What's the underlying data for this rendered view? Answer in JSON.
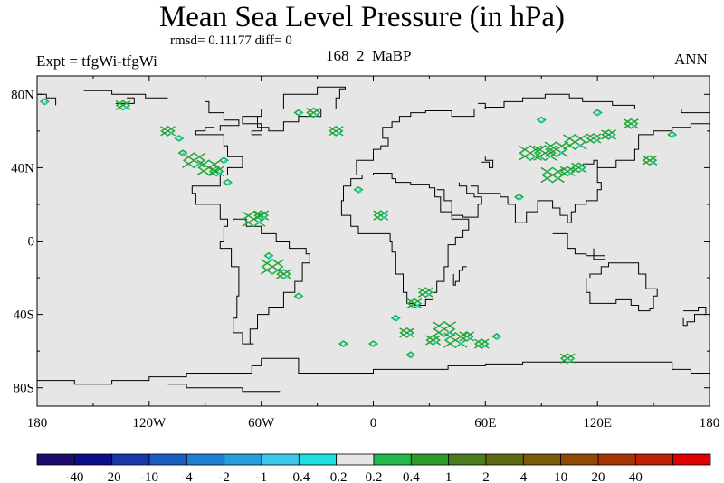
{
  "title": "Mean Sea Level Pressure (in hPa)",
  "stats": "rmsd= 0.11177 diff= 0",
  "experiment": "Expt = tfgWi-tfgWi",
  "run": "168_2_MaBP",
  "season": "ANN",
  "colors": {
    "ocean_bg": "#e6e6e6",
    "coast": "#000000",
    "pos_light": "#16b44a",
    "pos_mid": "#2f9a2a",
    "neg_light": "#1ad6d6"
  },
  "chart_data": {
    "type": "heatmap",
    "xlim": [
      -180,
      180
    ],
    "ylim": [
      -90,
      90
    ],
    "x_ticks": [
      {
        "v": -180,
        "label": "180"
      },
      {
        "v": -120,
        "label": "120W"
      },
      {
        "v": -60,
        "label": "60W"
      },
      {
        "v": 0,
        "label": "0"
      },
      {
        "v": 60,
        "label": "60E"
      },
      {
        "v": 120,
        "label": "120E"
      },
      {
        "v": 180,
        "label": "180"
      }
    ],
    "y_ticks": [
      {
        "v": 80,
        "label": "80N"
      },
      {
        "v": 40,
        "label": "40N"
      },
      {
        "v": 0,
        "label": "0"
      },
      {
        "v": -40,
        "label": "40S"
      },
      {
        "v": -80,
        "label": "80S"
      }
    ],
    "colorbar": {
      "colors": [
        "#1f0b6e",
        "#0a0e8a",
        "#1c37a8",
        "#1a5ec0",
        "#1f7fd0",
        "#26a0dc",
        "#3cc8e8",
        "#1ee0e0",
        "#e6e6e6",
        "#22b84a",
        "#2f9a2a",
        "#4a7d1d",
        "#5f6a14",
        "#7a5a0c",
        "#8f4a06",
        "#a53604",
        "#c01f02",
        "#e00000"
      ],
      "labels": [
        "-40",
        "-20",
        "-10",
        "-4",
        "-2",
        "-1",
        "-0.4",
        "-0.2",
        "0.2",
        "0.4",
        "1",
        "2",
        "4",
        "10",
        "20",
        "40"
      ]
    },
    "coastlines": [
      [
        [
          -180,
          80
        ],
        [
          -175,
          80
        ],
        [
          -175,
          78
        ],
        [
          -170,
          78
        ],
        [
          -170,
          74
        ]
      ],
      [
        [
          -155,
          82
        ],
        [
          -140,
          82
        ],
        [
          -140,
          80
        ],
        [
          -122,
          80
        ],
        [
          -122,
          78
        ],
        [
          -110,
          78
        ]
      ],
      [
        [
          -132,
          78
        ],
        [
          -128,
          78
        ],
        [
          -128,
          75
        ],
        [
          -138,
          75
        ]
      ],
      [
        [
          -90,
          76
        ],
        [
          -88,
          70
        ],
        [
          -80,
          70
        ],
        [
          -80,
          66
        ],
        [
          -72,
          66
        ],
        [
          -72,
          63
        ],
        [
          -78,
          63
        ],
        [
          -82,
          60
        ]
      ],
      [
        [
          -85,
          62
        ],
        [
          -90,
          60
        ],
        [
          -95,
          58
        ],
        [
          -80,
          52
        ],
        [
          -78,
          46
        ],
        [
          -70,
          40
        ],
        [
          -78,
          36
        ],
        [
          -82,
          30
        ],
        [
          -90,
          30
        ],
        [
          -97,
          26
        ],
        [
          -95,
          20
        ],
        [
          -88,
          20
        ],
        [
          -82,
          12
        ],
        [
          -78,
          8
        ],
        [
          -80,
          0
        ],
        [
          -82,
          -4
        ],
        [
          -76,
          -14
        ],
        [
          -72,
          -20
        ],
        [
          -72,
          -30
        ],
        [
          -73,
          -42
        ],
        [
          -75,
          -50
        ],
        [
          -70,
          -56
        ],
        [
          -64,
          -56
        ],
        [
          -66,
          -48
        ],
        [
          -62,
          -40
        ],
        [
          -56,
          -36
        ],
        [
          -48,
          -28
        ],
        [
          -42,
          -22
        ],
        [
          -38,
          -12
        ],
        [
          -34,
          -7
        ],
        [
          -36,
          -4
        ],
        [
          -45,
          0
        ],
        [
          -52,
          4
        ],
        [
          -60,
          8
        ],
        [
          -68,
          12
        ],
        [
          -75,
          11
        ]
      ],
      [
        [
          -60,
          58
        ],
        [
          -65,
          60
        ],
        [
          -60,
          64
        ],
        [
          -70,
          68
        ],
        [
          -60,
          72
        ],
        [
          -48,
          80
        ],
        [
          -30,
          84
        ],
        [
          -15,
          83
        ],
        [
          -18,
          78
        ],
        [
          -20,
          72
        ],
        [
          -28,
          68
        ],
        [
          -40,
          65
        ],
        [
          -48,
          60
        ],
        [
          -56,
          62
        ],
        [
          -62,
          68
        ]
      ],
      [
        [
          -10,
          36
        ],
        [
          -9,
          44
        ],
        [
          -4,
          44
        ],
        [
          0,
          50
        ],
        [
          4,
          52
        ],
        [
          8,
          56
        ],
        [
          5,
          62
        ],
        [
          10,
          65
        ],
        [
          14,
          68
        ],
        [
          20,
          70
        ],
        [
          28,
          71
        ],
        [
          42,
          68
        ],
        [
          48,
          68
        ],
        [
          54,
          72
        ],
        [
          60,
          73
        ],
        [
          70,
          76
        ],
        [
          80,
          78
        ],
        [
          92,
          80
        ],
        [
          105,
          78
        ],
        [
          112,
          76
        ],
        [
          128,
          74
        ],
        [
          140,
          72
        ],
        [
          152,
          72
        ],
        [
          165,
          70
        ],
        [
          175,
          70
        ],
        [
          180,
          70
        ]
      ],
      [
        [
          -10,
          36
        ],
        [
          -6,
          34
        ],
        [
          -12,
          30
        ],
        [
          -16,
          22
        ],
        [
          -17,
          14
        ],
        [
          -12,
          8
        ],
        [
          -8,
          4
        ],
        [
          0,
          4
        ],
        [
          8,
          4
        ],
        [
          9,
          0
        ],
        [
          10,
          -6
        ],
        [
          12,
          -12
        ],
        [
          12,
          -18
        ],
        [
          16,
          -28
        ],
        [
          18,
          -34
        ],
        [
          22,
          -35
        ],
        [
          28,
          -32
        ],
        [
          32,
          -28
        ],
        [
          34,
          -22
        ],
        [
          38,
          -14
        ],
        [
          40,
          -8
        ],
        [
          40,
          -2
        ],
        [
          44,
          2
        ],
        [
          48,
          6
        ],
        [
          51,
          12
        ],
        [
          44,
          12
        ],
        [
          42,
          16
        ],
        [
          36,
          24
        ],
        [
          33,
          29
        ],
        [
          30,
          31
        ],
        [
          26,
          31
        ],
        [
          20,
          32
        ],
        [
          12,
          34
        ],
        [
          10,
          37
        ],
        [
          0,
          36
        ],
        [
          -5,
          36
        ]
      ],
      [
        [
          34,
          28
        ],
        [
          38,
          22
        ],
        [
          42,
          14
        ],
        [
          48,
          13
        ],
        [
          56,
          20
        ],
        [
          58,
          24
        ],
        [
          54,
          26
        ],
        [
          50,
          30
        ],
        [
          46,
          32
        ]
      ],
      [
        [
          52,
          30
        ],
        [
          56,
          26
        ],
        [
          62,
          26
        ],
        [
          68,
          24
        ],
        [
          72,
          20
        ],
        [
          76,
          10
        ],
        [
          80,
          10
        ],
        [
          82,
          16
        ],
        [
          88,
          22
        ],
        [
          92,
          22
        ],
        [
          96,
          18
        ],
        [
          100,
          14
        ],
        [
          104,
          10
        ],
        [
          106,
          16
        ],
        [
          108,
          20
        ],
        [
          114,
          22
        ],
        [
          120,
          28
        ],
        [
          122,
          32
        ],
        [
          120,
          40
        ],
        [
          126,
          40
        ],
        [
          130,
          44
        ],
        [
          140,
          50
        ],
        [
          142,
          58
        ],
        [
          150,
          60
        ],
        [
          160,
          62
        ],
        [
          170,
          64
        ],
        [
          180,
          66
        ]
      ],
      [
        [
          50,
          -14
        ],
        [
          48,
          -16
        ],
        [
          46,
          -22
        ],
        [
          44,
          -24
        ],
        [
          43,
          -18
        ]
      ],
      [
        [
          96,
          4
        ],
        [
          104,
          -4
        ],
        [
          108,
          -7
        ],
        [
          114,
          -8
        ],
        [
          124,
          -10
        ],
        [
          118,
          -4
        ]
      ],
      [
        [
          114,
          -20
        ],
        [
          114,
          -28
        ],
        [
          116,
          -34
        ],
        [
          124,
          -34
        ],
        [
          130,
          -32
        ],
        [
          138,
          -35
        ],
        [
          142,
          -38
        ],
        [
          148,
          -37
        ],
        [
          150,
          -30
        ],
        [
          152,
          -26
        ],
        [
          146,
          -18
        ],
        [
          142,
          -12
        ],
        [
          136,
          -12
        ],
        [
          132,
          -12
        ],
        [
          126,
          -14
        ],
        [
          122,
          -18
        ],
        [
          116,
          -20
        ]
      ],
      [
        [
          166,
          -38
        ],
        [
          174,
          -36
        ],
        [
          178,
          -40
        ],
        [
          172,
          -44
        ],
        [
          168,
          -46
        ],
        [
          166,
          -42
        ]
      ],
      [
        [
          -60,
          -64
        ],
        [
          -40,
          -72
        ],
        [
          -20,
          -72
        ],
        [
          0,
          -70
        ],
        [
          20,
          -70
        ],
        [
          40,
          -68
        ],
        [
          60,
          -67
        ],
        [
          80,
          -66
        ],
        [
          100,
          -66
        ],
        [
          120,
          -66
        ],
        [
          140,
          -66
        ],
        [
          160,
          -70
        ],
        [
          170,
          -72
        ],
        [
          180,
          -74
        ]
      ],
      [
        [
          -180,
          -76
        ],
        [
          -160,
          -78
        ],
        [
          -140,
          -76
        ],
        [
          -120,
          -74
        ],
        [
          -100,
          -72
        ],
        [
          -80,
          -72
        ],
        [
          -65,
          -68
        ],
        [
          -60,
          -64
        ]
      ],
      [
        [
          58,
          43
        ],
        [
          62,
          40
        ],
        [
          64,
          44
        ],
        [
          60,
          46
        ]
      ],
      [
        [
          112,
          42
        ],
        [
          118,
          44
        ],
        [
          120,
          40
        ]
      ],
      [
        [
          60,
          72
        ],
        [
          60,
          75
        ],
        [
          56,
          75
        ]
      ],
      [
        [
          -110,
          -78
        ],
        [
          -100,
          -80
        ],
        [
          -80,
          -80
        ],
        [
          -70,
          -82
        ],
        [
          -50,
          -82
        ]
      ]
    ],
    "anomalies": [
      {
        "lon": -110,
        "lat": 60,
        "s": "m"
      },
      {
        "lon": -104,
        "lat": 56,
        "s": "s"
      },
      {
        "lon": -96,
        "lat": 44,
        "s": "l"
      },
      {
        "lon": -88,
        "lat": 40,
        "s": "l"
      },
      {
        "lon": -84,
        "lat": 38,
        "s": "m"
      },
      {
        "lon": -80,
        "lat": 44,
        "s": "s"
      },
      {
        "lon": -102,
        "lat": 48,
        "s": "s"
      },
      {
        "lon": -78,
        "lat": 32,
        "s": "s"
      },
      {
        "lon": -64,
        "lat": 12,
        "s": "l"
      },
      {
        "lon": -60,
        "lat": 14,
        "s": "m"
      },
      {
        "lon": -56,
        "lat": -8,
        "s": "s"
      },
      {
        "lon": -54,
        "lat": -14,
        "s": "l"
      },
      {
        "lon": -48,
        "lat": -18,
        "s": "m"
      },
      {
        "lon": -40,
        "lat": -30,
        "s": "s"
      },
      {
        "lon": -20,
        "lat": 60,
        "s": "m"
      },
      {
        "lon": -32,
        "lat": 70,
        "s": "m"
      },
      {
        "lon": -8,
        "lat": 28,
        "s": "s"
      },
      {
        "lon": 18,
        "lat": -50,
        "s": "m"
      },
      {
        "lon": 22,
        "lat": -34,
        "s": "m"
      },
      {
        "lon": 12,
        "lat": -42,
        "s": "s"
      },
      {
        "lon": 28,
        "lat": -28,
        "s": "m"
      },
      {
        "lon": 38,
        "lat": -48,
        "s": "l"
      },
      {
        "lon": 44,
        "lat": -54,
        "s": "l"
      },
      {
        "lon": 50,
        "lat": -52,
        "s": "m"
      },
      {
        "lon": 58,
        "lat": -56,
        "s": "m"
      },
      {
        "lon": 32,
        "lat": -54,
        "s": "m"
      },
      {
        "lon": 20,
        "lat": -62,
        "s": "s"
      },
      {
        "lon": 84,
        "lat": 48,
        "s": "l"
      },
      {
        "lon": 92,
        "lat": 48,
        "s": "l"
      },
      {
        "lon": 98,
        "lat": 50,
        "s": "l"
      },
      {
        "lon": 108,
        "lat": 54,
        "s": "l"
      },
      {
        "lon": 118,
        "lat": 56,
        "s": "m"
      },
      {
        "lon": 96,
        "lat": 36,
        "s": "l"
      },
      {
        "lon": 104,
        "lat": 38,
        "s": "m"
      },
      {
        "lon": 110,
        "lat": 40,
        "s": "m"
      },
      {
        "lon": 126,
        "lat": 58,
        "s": "m"
      },
      {
        "lon": 138,
        "lat": 64,
        "s": "m"
      },
      {
        "lon": 148,
        "lat": 44,
        "s": "m"
      },
      {
        "lon": 90,
        "lat": 66,
        "s": "s"
      },
      {
        "lon": 120,
        "lat": 70,
        "s": "s"
      },
      {
        "lon": 104,
        "lat": -64,
        "s": "m"
      },
      {
        "lon": 4,
        "lat": 14,
        "s": "m"
      },
      {
        "lon": -40,
        "lat": 70,
        "s": "s"
      },
      {
        "lon": -134,
        "lat": 74,
        "s": "m"
      },
      {
        "lon": -176,
        "lat": 76,
        "s": "s"
      },
      {
        "lon": 0,
        "lat": -56,
        "s": "s"
      },
      {
        "lon": 66,
        "lat": -52,
        "s": "s"
      },
      {
        "lon": 78,
        "lat": 24,
        "s": "s"
      },
      {
        "lon": 160,
        "lat": 58,
        "s": "s"
      },
      {
        "lon": -16,
        "lat": -56,
        "s": "s"
      }
    ]
  }
}
